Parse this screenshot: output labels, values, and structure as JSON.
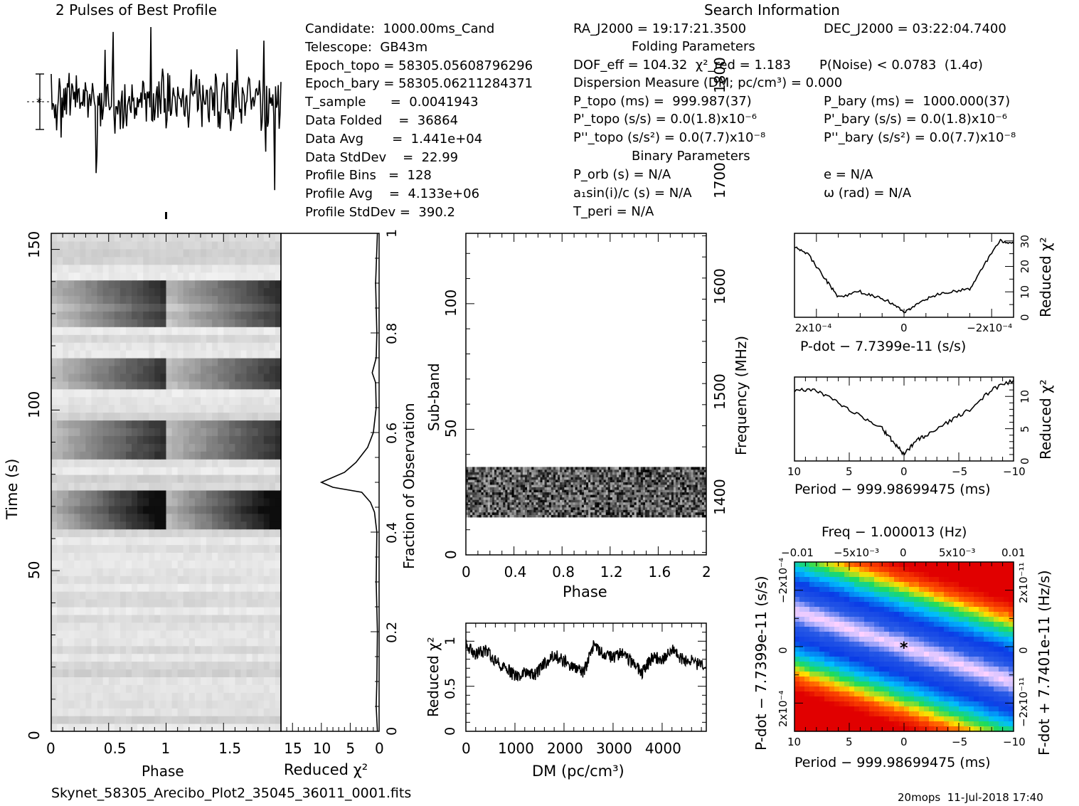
{
  "profile_title": "2 Pulses of Best Profile",
  "search_title": "Search Information",
  "candidate_info": [
    "Candidate:  1000.00ms_Cand",
    "Telescope:  GB43m",
    "Epoch_topo = 58305.05608796296",
    "Epoch_bary = 58305.06211284371",
    "T_sample      =  0.0041943",
    "Data Folded    =  36864",
    "Data Avg       =  1.441e+04",
    "Data StdDev    =  22.99",
    "Profile Bins   =  128",
    "Profile Avg    =  4.133e+06",
    "Profile StdDev =  390.2"
  ],
  "search_info": {
    "ra": "RA_J2000 = 19:17:21.3500",
    "dec": "DEC_J2000 = 03:22:04.7400",
    "folding_header": "Folding Parameters",
    "dof": "DOF_eff = 104.32  χ²_red = 1.183",
    "pnoise": "P(Noise) < 0.0783  (1.4σ)",
    "dm": "Dispersion Measure (DM; pc/cm³) = 0.000",
    "ptopo": "P_topo (ms) =  999.987(37)",
    "pbary": "P_bary (ms) =  1000.000(37)",
    "pdtopo": "P'_topo (s/s) = 0.0(1.8)x10⁻⁶",
    "pdbary": "P'_bary (s/s) = 0.0(1.8)x10⁻⁶",
    "pddtopo": "P''_topo (s/s²) = 0.0(7.7)x10⁻⁸",
    "pddbary": "P''_bary (s/s²) = 0.0(7.7)x10⁻⁸",
    "binary_header": "Binary Parameters",
    "porb": "P_orb (s) = N/A",
    "ecc": "e = N/A",
    "a1": "a₁sin(i)/c (s) = N/A",
    "omega": "ω (rad) = N/A",
    "tperi": "T_peri = N/A"
  },
  "footer": {
    "filename": "Skynet_58305_Arecibo_Plot2_35045_36011_0001.fits",
    "stamp": "20mops  11-Jul-2018 17:40"
  },
  "chart_data": [
    {
      "type": "line",
      "title": "2 Pulses of Best Profile",
      "x": [
        0,
        2
      ],
      "description_of_series": "noise-like profile over 2 pulses, no clear pulse"
    },
    {
      "type": "heatmap",
      "xlabel": "Phase",
      "ylabel": "Time (s)",
      "x_ticks": [
        "0",
        "0.5",
        "1",
        "1.5"
      ],
      "y_ticks": [
        "0",
        "50",
        "100",
        "150"
      ],
      "xlim": [
        0,
        2
      ],
      "ylim": [
        0,
        155
      ],
      "dark_bands_time_s": [
        [
          63,
          76
        ],
        [
          84,
          96
        ],
        [
          107,
          117
        ],
        [
          125,
          140
        ]
      ]
    },
    {
      "type": "line",
      "xlabel": "Reduced χ²",
      "ylabel": "Fraction of Observation",
      "x_ticks": [
        "15",
        "10",
        "5",
        "0"
      ],
      "y_ticks": [
        "0",
        "0.2",
        "0.4",
        "0.6",
        "0.8",
        "1"
      ],
      "xlim": [
        17,
        0
      ],
      "ylim": [
        0,
        1
      ],
      "points": [
        [
          0.3,
          0
        ],
        [
          0.5,
          0.05
        ],
        [
          0.4,
          0.1
        ],
        [
          0.3,
          0.2
        ],
        [
          0.5,
          0.3
        ],
        [
          0.4,
          0.4
        ],
        [
          0.8,
          0.44
        ],
        [
          1.5,
          0.46
        ],
        [
          3,
          0.48
        ],
        [
          8,
          0.49
        ],
        [
          10,
          0.5
        ],
        [
          6,
          0.52
        ],
        [
          5,
          0.53
        ],
        [
          4,
          0.54
        ],
        [
          2,
          0.57
        ],
        [
          1,
          0.6
        ],
        [
          0.5,
          0.65
        ],
        [
          0.6,
          0.7
        ],
        [
          1.2,
          0.72
        ],
        [
          0.5,
          0.75
        ],
        [
          0.4,
          0.8
        ],
        [
          0.6,
          0.9
        ],
        [
          0.3,
          1.0
        ]
      ]
    },
    {
      "type": "heatmap",
      "xlabel": "Phase",
      "ylabel": "Sub-band",
      "right_label": "Frequency (MHz)",
      "x_ticks": [
        "0",
        "0.4",
        "0.8",
        "1.2",
        "1.6",
        "2"
      ],
      "y_ticks": [
        "0",
        "50",
        "100"
      ],
      "right_ticks": [
        "1400",
        "1500",
        "1600",
        "1700",
        "1800"
      ],
      "xlim": [
        0,
        2
      ],
      "ylim": [
        0,
        128
      ],
      "active_subbands": [
        15,
        35
      ]
    },
    {
      "type": "line",
      "xlabel": "DM (pc/cm³)",
      "ylabel": "Reduced χ²",
      "x_ticks": [
        "0",
        "1000",
        "2000",
        "3000",
        "4000"
      ],
      "y_ticks": [
        "0",
        "0.5",
        "1"
      ],
      "xlim": [
        0,
        4900
      ],
      "ylim": [
        0,
        1.2
      ],
      "x": [
        0,
        200,
        400,
        600,
        800,
        1000,
        1200,
        1400,
        1600,
        1800,
        2000,
        2200,
        2400,
        2600,
        2800,
        3000,
        3200,
        3400,
        3600,
        3800,
        4000,
        4200,
        4400,
        4600,
        4900
      ],
      "values": [
        0.95,
        0.85,
        0.9,
        0.78,
        0.72,
        0.6,
        0.65,
        0.62,
        0.75,
        0.85,
        0.78,
        0.7,
        0.65,
        0.95,
        0.85,
        0.82,
        0.88,
        0.75,
        0.65,
        0.82,
        0.8,
        0.9,
        0.8,
        0.78,
        0.7
      ]
    },
    {
      "type": "line",
      "xlabel": "P-dot − 7.7399e-11 (s/s)",
      "ylabel": "Reduced χ²",
      "x_ticks": [
        "2x10⁻⁴",
        "0",
        "−2x10⁻⁴"
      ],
      "y_ticks": [
        "0",
        "10",
        "20",
        "30"
      ],
      "xlim": [
        0.00025,
        -0.00025
      ],
      "ylim": [
        0,
        33
      ],
      "x": [
        0.00025,
        0.00022,
        0.00018,
        0.00015,
        0.0001,
        6e-05,
        2e-05,
        0,
        -2e-05,
        -6e-05,
        -0.0001,
        -0.00015,
        -0.00018,
        -0.00022,
        -0.00025
      ],
      "values": [
        28,
        25,
        15,
        8,
        10,
        8,
        5,
        1.5,
        4,
        8,
        10,
        11,
        20,
        30,
        29
      ]
    },
    {
      "type": "line",
      "xlabel": "Period − 999.98699475 (ms)",
      "ylabel": "Reduced χ²",
      "x_ticks": [
        "10",
        "5",
        "0",
        "−5",
        "−10"
      ],
      "y_ticks": [
        "0",
        "5",
        "10"
      ],
      "xlim": [
        10,
        -10
      ],
      "ylim": [
        0,
        13
      ],
      "x": [
        10,
        8,
        6,
        4,
        2,
        1,
        0,
        -1,
        -2,
        -4,
        -6,
        -8,
        -10
      ],
      "values": [
        11,
        11,
        9,
        7,
        5,
        3,
        1,
        3,
        4,
        6,
        8,
        11,
        12.5
      ]
    },
    {
      "type": "heatmap",
      "title": "Freq − 1.000013 (Hz)",
      "xlabel": "Period − 999.98699475 (ms)",
      "ylabel": "P-dot − 7.7399e-11 (s/s)",
      "right_label": "F-dot + 7.7401e-11 (Hz/s)",
      "x_ticks": [
        "10",
        "5",
        "0",
        "−5",
        "−10"
      ],
      "top_ticks": [
        "−0.01",
        "−5x10⁻³",
        "0",
        "5x10⁻³",
        "0.01"
      ],
      "y_ticks": [
        "−2x10⁻⁴",
        "0",
        "2x10⁻⁴"
      ],
      "right_ticks": [
        "2x10⁻¹¹",
        "0",
        "−2x10⁻¹¹"
      ],
      "xlim": [
        10,
        -10
      ],
      "ylim": [
        -0.0003,
        0.0003
      ]
    }
  ]
}
